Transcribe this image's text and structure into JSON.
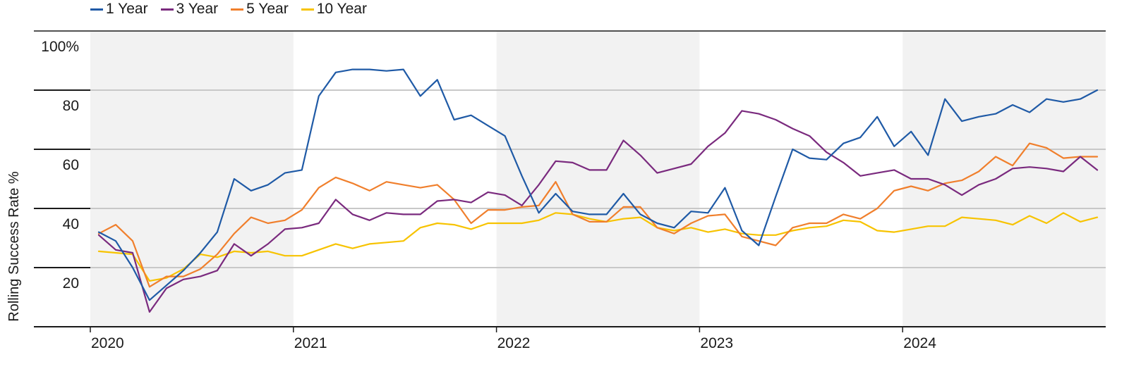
{
  "chart_data": {
    "type": "line",
    "title": "",
    "xlabel": "",
    "ylabel": "Rolling Success Rate %",
    "ylim": [
      0,
      100
    ],
    "y_ticks": [
      {
        "value": 100,
        "label": "100%"
      },
      {
        "value": 80,
        "label": "80"
      },
      {
        "value": 60,
        "label": "60"
      },
      {
        "value": 40,
        "label": "40"
      },
      {
        "value": 20,
        "label": "20"
      }
    ],
    "x_ticks": [
      "2020",
      "2021",
      "2022",
      "2023",
      "2024"
    ],
    "grid": true,
    "alternating_year_shading": true,
    "legend_position": "top-left",
    "x_start": "2020-01",
    "x_end": "2024-12",
    "series": [
      {
        "name": "1 Year",
        "color": "#1f5aa6",
        "values": [
          32,
          29,
          20,
          9,
          14,
          19,
          25,
          32,
          50,
          46,
          48,
          52,
          53,
          78,
          86,
          87,
          87,
          86.5,
          87,
          78,
          83.5,
          70,
          71.5,
          68,
          64.5,
          51,
          38.5,
          45,
          39,
          38,
          38,
          45,
          38,
          35,
          33.5,
          39,
          38.5,
          47,
          32.5,
          27.5,
          44,
          60,
          57,
          56.5,
          62,
          64,
          71,
          61,
          66,
          58,
          77,
          69.5,
          71,
          72,
          75,
          72.5,
          77,
          76,
          77,
          80
        ]
      },
      {
        "name": "3 Year",
        "color": "#7a2a7e",
        "values": [
          31,
          26,
          25,
          5,
          13,
          16,
          17,
          19,
          28,
          24,
          28,
          33,
          33.5,
          35,
          43,
          38,
          36,
          38.5,
          38,
          38,
          42.5,
          43,
          42,
          45.5,
          44.5,
          41,
          48,
          56,
          55.5,
          53,
          53,
          63,
          58,
          52,
          53.5,
          55,
          61,
          65.5,
          73,
          72,
          70,
          67,
          64.5,
          59,
          55.5,
          51,
          52,
          53,
          50,
          50,
          48,
          44.5,
          48,
          50,
          53.5,
          54,
          53.5,
          52.5,
          57.5,
          53
        ]
      },
      {
        "name": "5 Year",
        "color": "#f07f2c",
        "values": [
          31.5,
          34.5,
          29,
          13.5,
          17,
          17,
          19.5,
          24.5,
          31.5,
          37,
          35,
          36,
          39.5,
          47,
          50.5,
          48.5,
          46,
          49,
          48,
          47,
          48,
          43,
          35,
          39.5,
          39.5,
          40.5,
          41,
          49,
          38,
          35.5,
          35.5,
          40.5,
          40.5,
          33.5,
          31.5,
          35,
          37.5,
          38,
          30.5,
          29,
          27.5,
          33.5,
          35,
          35,
          38,
          36.5,
          40,
          46,
          47.5,
          46,
          48.5,
          49.5,
          52.5,
          57.5,
          54.5,
          62,
          60.5,
          57,
          57.5,
          57.5
        ]
      },
      {
        "name": "10 Year",
        "color": "#f7c300",
        "values": [
          25.5,
          25,
          24.5,
          15.5,
          16.5,
          19.5,
          24.5,
          23.5,
          25.5,
          25,
          25.5,
          24,
          24,
          26,
          28,
          26.5,
          28,
          28.5,
          29,
          33.5,
          35,
          34.5,
          33,
          35,
          35,
          35,
          36,
          38.5,
          38,
          36.5,
          35.5,
          36.5,
          37,
          33.5,
          32.5,
          33.5,
          32,
          33,
          31.5,
          31,
          31,
          32.5,
          33.5,
          34,
          36,
          35.5,
          32.5,
          32,
          33,
          34,
          34,
          37,
          36.5,
          36,
          34.5,
          37.5,
          35,
          38.5,
          35.5,
          37
        ]
      }
    ]
  }
}
